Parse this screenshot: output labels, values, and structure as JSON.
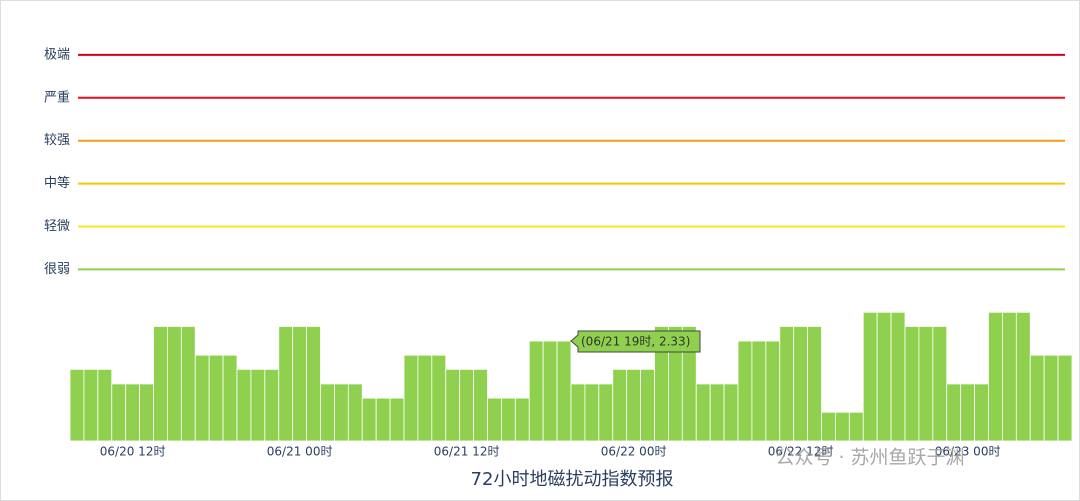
{
  "chart_data": {
    "type": "bar",
    "title": "72小时地磁扰动指数预报",
    "tooltip": "(06/21 19时, 2.33)",
    "watermark": "公众号 · 苏州鱼跃于渊",
    "categories": [
      null,
      null,
      null,
      null,
      "06/20 12时",
      null,
      null,
      null,
      null,
      null,
      null,
      null,
      null,
      null,
      null,
      null,
      "06/21 00时",
      null,
      null,
      null,
      null,
      null,
      null,
      null,
      null,
      null,
      null,
      null,
      "06/21 12时",
      null,
      null,
      null,
      null,
      null,
      null,
      null,
      null,
      null,
      null,
      null,
      "06/22 00时",
      null,
      null,
      null,
      null,
      null,
      null,
      null,
      null,
      null,
      null,
      null,
      "06/22 12时",
      null,
      null,
      null,
      null,
      null,
      null,
      null,
      null,
      null,
      null,
      null,
      "06/23 00时",
      null,
      null,
      null,
      null,
      null,
      null,
      null
    ],
    "values": [
      1.67,
      1.67,
      1.67,
      1.33,
      1.33,
      1.33,
      2.67,
      2.67,
      2.67,
      2,
      2,
      2,
      1.67,
      1.67,
      1.67,
      2.67,
      2.67,
      2.67,
      1.33,
      1.33,
      1.33,
      1,
      1,
      1,
      2,
      2,
      2,
      1.67,
      1.67,
      1.67,
      1,
      1,
      1,
      2.33,
      2.33,
      2.33,
      1.33,
      1.33,
      1.33,
      1.67,
      1.67,
      1.67,
      2.67,
      2.67,
      2.67,
      1.33,
      1.33,
      1.33,
      2.33,
      2.33,
      2.33,
      2.67,
      2.67,
      2.67,
      0.67,
      0.67,
      0.67,
      3,
      3,
      3,
      2.67,
      2.67,
      2.67,
      1.33,
      1.33,
      1.33,
      3,
      3,
      3,
      2,
      2,
      2
    ],
    "color": "#8fd14f",
    "ylim": [
      0,
      10
    ],
    "yticks": [
      {
        "value": 4,
        "label": "很弱"
      },
      {
        "value": 5,
        "label": "轻微"
      },
      {
        "value": 6,
        "label": "中等"
      },
      {
        "value": 7,
        "label": "较强"
      },
      {
        "value": 8,
        "label": "严重"
      },
      {
        "value": 9,
        "label": "极端"
      }
    ],
    "threshold_colors": [
      "#92d050",
      "#f5e62a",
      "#f7c600",
      "#f59a1b",
      "#e8101b",
      "#d9001b"
    ]
  }
}
